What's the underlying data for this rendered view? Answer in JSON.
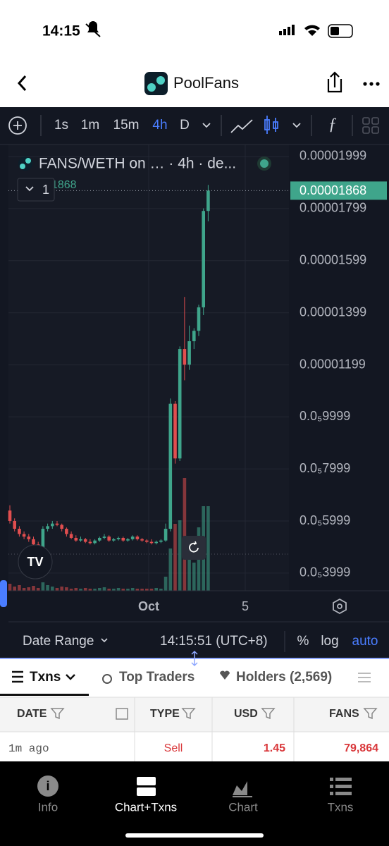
{
  "status_bar": {
    "time": "14:15"
  },
  "header": {
    "title": "PoolFans"
  },
  "toolbar": {
    "intervals": [
      "1s",
      "1m",
      "15m",
      "4h",
      "D"
    ],
    "active": "4h"
  },
  "chart_data": {
    "type": "candlestick",
    "legend_title": "FANS/WETH on … · 4h · de...",
    "last_price": 1.868e-05,
    "indicator_count": 1,
    "up_color": "#3fa58b",
    "down_color": "#e14e4f",
    "ylim": [
      3.32e-06,
      2.045e-05
    ],
    "yticks": [
      1.999e-05,
      1.799e-05,
      1.599e-05,
      1.399e-05,
      1.199e-05,
      {
        "value": 9.999e-06,
        "label": "0.0₅9999"
      },
      {
        "value": 7.999e-06,
        "label": "0.0₅7999"
      },
      {
        "value": 5.999e-06,
        "label": "0.0₅5999"
      },
      {
        "value": 3.999e-06,
        "label": "0.0₅3999"
      }
    ],
    "x_labels": [
      "Oct",
      "5"
    ],
    "candles": [
      {
        "o": 6.4e-06,
        "h": 6.6e-06,
        "l": 5.9e-06,
        "c": 6e-06
      },
      {
        "o": 6e-06,
        "h": 6.1e-06,
        "l": 5.6e-06,
        "c": 5.7e-06
      },
      {
        "o": 5.7e-06,
        "h": 5.8e-06,
        "l": 5.4e-06,
        "c": 5.5e-06
      },
      {
        "o": 5.5e-06,
        "h": 5.6e-06,
        "l": 5.3e-06,
        "c": 5.4e-06
      },
      {
        "o": 5.4e-06,
        "h": 5.5e-06,
        "l": 5.2e-06,
        "c": 5.3e-06
      },
      {
        "o": 5.3e-06,
        "h": 5.4e-06,
        "l": 5e-06,
        "c": 5.1e-06
      },
      {
        "o": 5.1e-06,
        "h": 5.2e-06,
        "l": 4.8e-06,
        "c": 4.9e-06
      },
      {
        "o": 4.9e-06,
        "h": 5.8e-06,
        "l": 4.9e-06,
        "c": 5.7e-06
      },
      {
        "o": 5.7e-06,
        "h": 5.9e-06,
        "l": 5.6e-06,
        "c": 5.8e-06
      },
      {
        "o": 5.8e-06,
        "h": 6e-06,
        "l": 5.7e-06,
        "c": 5.9e-06
      },
      {
        "o": 5.9e-06,
        "h": 6e-06,
        "l": 5.8e-06,
        "c": 5.85e-06
      },
      {
        "o": 5.85e-06,
        "h": 5.9e-06,
        "l": 5.6e-06,
        "c": 5.7e-06
      },
      {
        "o": 5.7e-06,
        "h": 5.75e-06,
        "l": 5.4e-06,
        "c": 5.5e-06
      },
      {
        "o": 5.5e-06,
        "h": 5.6e-06,
        "l": 5.3e-06,
        "c": 5.35e-06
      },
      {
        "o": 5.35e-06,
        "h": 5.45e-06,
        "l": 5.2e-06,
        "c": 5.25e-06
      },
      {
        "o": 5.25e-06,
        "h": 5.4e-06,
        "l": 5.2e-06,
        "c": 5.3e-06
      },
      {
        "o": 5.3e-06,
        "h": 5.35e-06,
        "l": 5.15e-06,
        "c": 5.2e-06
      },
      {
        "o": 5.2e-06,
        "h": 5.3e-06,
        "l": 5.1e-06,
        "c": 5.15e-06
      },
      {
        "o": 5.15e-06,
        "h": 5.3e-06,
        "l": 5.1e-06,
        "c": 5.25e-06
      },
      {
        "o": 5.25e-06,
        "h": 5.4e-06,
        "l": 5.2e-06,
        "c": 5.35e-06
      },
      {
        "o": 5.35e-06,
        "h": 5.5e-06,
        "l": 5.3e-06,
        "c": 5.4e-06
      },
      {
        "o": 5.4e-06,
        "h": 5.45e-06,
        "l": 5.2e-06,
        "c": 5.25e-06
      },
      {
        "o": 5.25e-06,
        "h": 5.35e-06,
        "l": 5.2e-06,
        "c": 5.3e-06
      },
      {
        "o": 5.3e-06,
        "h": 5.4e-06,
        "l": 5.25e-06,
        "c": 5.35e-06
      },
      {
        "o": 5.35e-06,
        "h": 5.4e-06,
        "l": 5.2e-06,
        "c": 5.25e-06
      },
      {
        "o": 5.25e-06,
        "h": 5.35e-06,
        "l": 5.2e-06,
        "c": 5.3e-06
      },
      {
        "o": 5.3e-06,
        "h": 5.45e-06,
        "l": 5.25e-06,
        "c": 5.4e-06
      },
      {
        "o": 5.4e-06,
        "h": 5.45e-06,
        "l": 5.25e-06,
        "c": 5.3e-06
      },
      {
        "o": 5.3e-06,
        "h": 5.35e-06,
        "l": 5.2e-06,
        "c": 5.25e-06
      },
      {
        "o": 5.25e-06,
        "h": 5.3e-06,
        "l": 5.15e-06,
        "c": 5.2e-06
      },
      {
        "o": 5.2e-06,
        "h": 5.3e-06,
        "l": 5.1e-06,
        "c": 5.15e-06
      },
      {
        "o": 5.15e-06,
        "h": 5.25e-06,
        "l": 5.1e-06,
        "c": 5.2e-06
      },
      {
        "o": 5.2e-06,
        "h": 5.3e-06,
        "l": 5.15e-06,
        "c": 5.25e-06
      },
      {
        "o": 5.25e-06,
        "h": 5.9e-06,
        "l": 5.2e-06,
        "c": 5.7e-06
      },
      {
        "o": 5.7e-06,
        "h": 1.07e-05,
        "l": 5.6e-06,
        "c": 1.05e-05
      },
      {
        "o": 1.05e-05,
        "h": 1.06e-05,
        "l": 8.2e-06,
        "c": 8.4e-06
      },
      {
        "o": 8.4e-06,
        "h": 1.27e-05,
        "l": 8.3e-06,
        "c": 1.26e-05
      },
      {
        "o": 1.26e-05,
        "h": 1.46e-05,
        "l": 1.14e-05,
        "c": 1.2e-05
      },
      {
        "o": 1.2e-05,
        "h": 1.35e-05,
        "l": 1.18e-05,
        "c": 1.29e-05
      },
      {
        "o": 1.29e-05,
        "h": 1.34e-05,
        "l": 1.26e-05,
        "c": 1.33e-05
      },
      {
        "o": 1.33e-05,
        "h": 1.43e-05,
        "l": 1.31e-05,
        "c": 1.42e-05
      },
      {
        "o": 1.42e-05,
        "h": 1.8e-05,
        "l": 1.39e-05,
        "c": 1.79e-05
      },
      {
        "o": 1.79e-05,
        "h": 1.89e-05,
        "l": 1.75e-05,
        "c": 1.868e-05
      }
    ],
    "volumes": [
      10,
      6,
      8,
      4,
      5,
      7,
      4,
      12,
      8,
      6,
      4,
      6,
      5,
      3,
      4,
      3,
      4,
      3,
      3,
      4,
      5,
      3,
      3,
      4,
      3,
      3,
      4,
      3,
      3,
      3,
      3,
      4,
      3,
      20,
      60,
      95,
      100,
      160,
      60,
      40,
      90,
      120,
      120
    ]
  },
  "chart_footer": {
    "date_range": "Date Range",
    "time": "14:15:51 (UTC+8)",
    "options": [
      "%",
      "log",
      "auto"
    ]
  },
  "tabs": [
    "Txns",
    "Top Traders",
    "Holders (2,569)"
  ],
  "table": {
    "columns": [
      "DATE",
      "TYPE",
      "USD",
      "FANS"
    ],
    "rows": [
      [
        "1m ago",
        "Sell",
        1.45,
        "79,864"
      ]
    ]
  },
  "nav": [
    "Info",
    "Chart+Txns",
    "Chart",
    "Txns"
  ]
}
